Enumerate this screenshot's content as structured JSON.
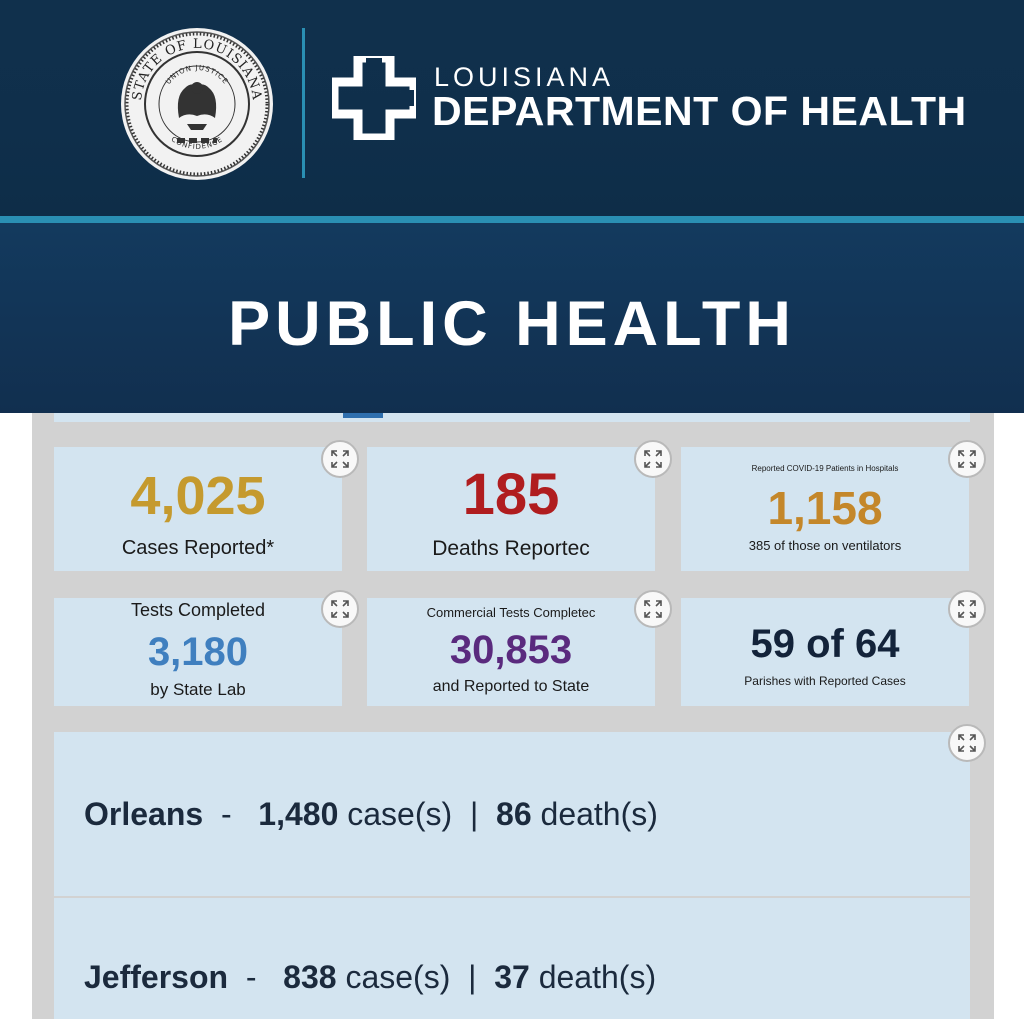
{
  "header": {
    "org_small": "LOUISIANA",
    "org_big": "DEPARTMENT OF HEALTH",
    "banner": "PUBLIC HEALTH",
    "seal_text_top": "STATE OF LOUISIANA",
    "seal_text_inner": "UNION JUSTICE",
    "seal_text_bottom": "CONFIDENCE"
  },
  "colors": {
    "cases": "#c59a2e",
    "deaths": "#b01d1f",
    "hospital": "#c4872a",
    "state_lab": "#3f7fbf",
    "commercial": "#5a2a7e",
    "parishes": "#13233a"
  },
  "cards": {
    "cases": {
      "value": "4,025",
      "label": "Cases Reported*"
    },
    "deaths": {
      "value": "185",
      "label": "Deaths Reportec"
    },
    "hospital": {
      "caption": "Reported COVID-19 Patients in Hospitals",
      "value": "1,158",
      "label": "385 of those on ventilators"
    },
    "state_lab": {
      "caption": "Tests Completed",
      "value": "3,180",
      "label": "by State Lab"
    },
    "commercial": {
      "caption": "Commercial Tests Completec",
      "value": "30,853",
      "label": "and Reported to State"
    },
    "parishes": {
      "value": "59 of 64",
      "label": "Parishes with Reported Cases"
    }
  },
  "parish_list": [
    {
      "name": "Orleans",
      "sep": "-",
      "cases": "1,480",
      "cases_unit": "case(s)",
      "divider": "|",
      "deaths": "86",
      "deaths_unit": "death(s)"
    },
    {
      "name": "Jefferson",
      "sep": "-",
      "cases": "838",
      "cases_unit": "case(s)",
      "divider": "|",
      "deaths": "37",
      "deaths_unit": "death(s)"
    }
  ],
  "icons": {
    "expand": "expand-arrows-icon",
    "seal": "state-seal-icon",
    "cross": "health-cross-logo-icon"
  }
}
